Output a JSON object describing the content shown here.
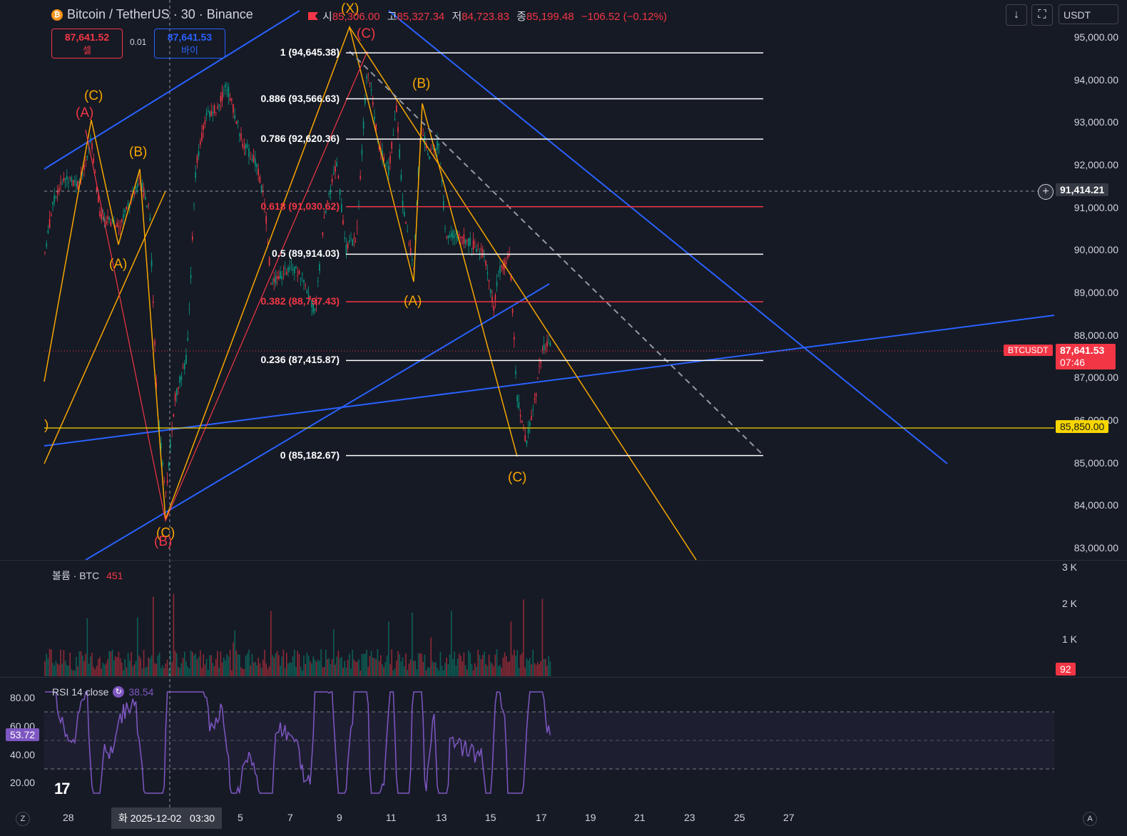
{
  "header": {
    "symbol": "Bitcoin / TetherUS · 30 · Binance",
    "open_label": "시",
    "open": "85,306.00",
    "high_label": "고",
    "high": "85,327.34",
    "low_label": "저",
    "low": "84,723.83",
    "close_label": "종",
    "close": "85,199.48",
    "change": "−106.52 (−0.12%)"
  },
  "trade": {
    "sell_price": "87,641.52",
    "sell_label": "셀",
    "spread": "0.01",
    "buy_price": "87,641.53",
    "buy_label": "바이"
  },
  "toolbar": {
    "currency": "USDT"
  },
  "price_axis": [
    "95,000.00",
    "94,000.00",
    "93,000.00",
    "92,000.00",
    "91,000.00",
    "90,000.00",
    "89,000.00",
    "88,000.00",
    "87,000.00",
    "86,000.00",
    "85,000.00",
    "84,000.00",
    "83,000.00"
  ],
  "crosshair_price": "91,414.21",
  "symbol_tag": "BTCUSDT",
  "last_price": "87,641.53",
  "countdown": "07:46",
  "hline_price": "85,850.00",
  "fib_levels": [
    {
      "label": "1 (94,645.38)",
      "price": 94645.38,
      "color": "#ffffff"
    },
    {
      "label": "0.886 (93,566.63)",
      "price": 93566.63,
      "color": "#ffffff"
    },
    {
      "label": "0.786 (92,620.36)",
      "price": 92620.36,
      "color": "#ffffff"
    },
    {
      "label": "0.618 (91,030.62)",
      "price": 91030.62,
      "color": "#f23645"
    },
    {
      "label": "0.5 (89,914.03)",
      "price": 89914.03,
      "color": "#ffffff"
    },
    {
      "label": "0.382 (88,797.43)",
      "price": 88797.43,
      "color": "#f23645"
    },
    {
      "label": "0.236 (87,415.87)",
      "price": 87415.87,
      "color": "#ffffff"
    },
    {
      "label": "0 (85,182.67)",
      "price": 85182.67,
      "color": "#ffffff"
    }
  ],
  "wave_labels": [
    {
      "text": "(C)",
      "color": "#f7a600"
    },
    {
      "text": "(A)",
      "color": "#f23645"
    },
    {
      "text": "(B)",
      "color": "#f7a600"
    },
    {
      "text": "(A)",
      "color": "#f7a600"
    },
    {
      "text": "(C)",
      "color": "#f7a600"
    },
    {
      "text": "(B)",
      "color": "#f23645"
    },
    {
      "text": "(X)",
      "color": "#f7a600"
    },
    {
      "text": "(C)",
      "color": "#f23645"
    },
    {
      "text": "(B)",
      "color": "#f7a600"
    },
    {
      "text": "(A)",
      "color": "#f7a600"
    },
    {
      "text": "(C)",
      "color": "#f7a600"
    },
    {
      "text": ")",
      "color": "#f7a600"
    }
  ],
  "volume": {
    "title": "볼륨 · BTC",
    "value": "451",
    "axis": [
      "3 K",
      "2 K",
      "1 K"
    ],
    "tag": "92"
  },
  "rsi": {
    "title": "RSI 14 close",
    "value": "38.54",
    "axis": [
      "80.00",
      "60.00",
      "40.00",
      "20.00"
    ],
    "tag": "53.72"
  },
  "time_axis": {
    "labels": [
      "28",
      "5",
      "7",
      "9",
      "11",
      "13",
      "15",
      "17",
      "19",
      "21",
      "23",
      "25",
      "27"
    ],
    "cursor": "화 2025-12-02   03:30"
  },
  "corners": {
    "left": "Z",
    "right": "A"
  },
  "colors": {
    "bg": "#161a25",
    "up": "#089981",
    "down": "#f23645",
    "orange": "#f7a600",
    "blue": "#2962ff",
    "rsi": "#7e57c2"
  }
}
